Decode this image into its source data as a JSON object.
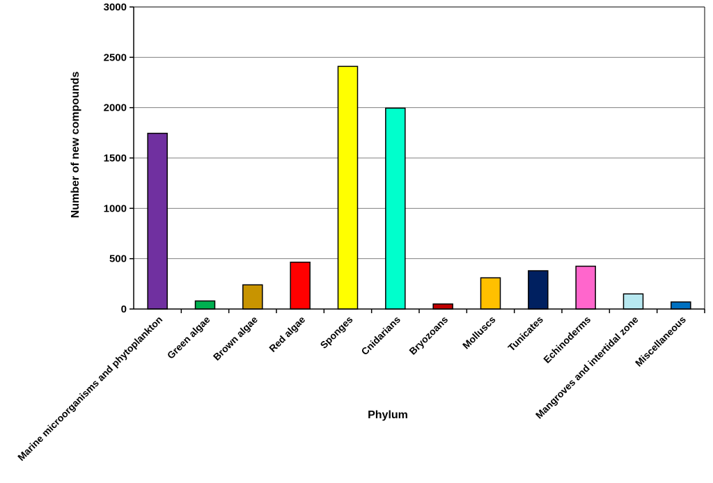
{
  "chart_data": {
    "type": "bar",
    "title": "",
    "xlabel": "Phylum",
    "ylabel": "Number of new compounds",
    "ylim": [
      0,
      3000
    ],
    "yticks": [
      0,
      500,
      1000,
      1500,
      2000,
      2500,
      3000
    ],
    "grid": true,
    "legend": "none",
    "categories": [
      "Marine microorganisms and phytoplankton",
      "Green algae",
      "Brown algae",
      "Red algae",
      "Sponges",
      "Cnidarians",
      "Bryozoans",
      "Molluscs",
      "Tunicates",
      "Echinoderms",
      "Mangroves and intertidal zone",
      "Miscellaneous"
    ],
    "values": [
      1745,
      80,
      240,
      465,
      2410,
      1995,
      50,
      310,
      380,
      425,
      150,
      70
    ],
    "colors": [
      "#7030a0",
      "#00b050",
      "#c89400",
      "#ff0000",
      "#ffff00",
      "#00ffcc",
      "#c00000",
      "#ffc000",
      "#002060",
      "#ff66cc",
      "#b7e8f0",
      "#0070c0"
    ]
  }
}
